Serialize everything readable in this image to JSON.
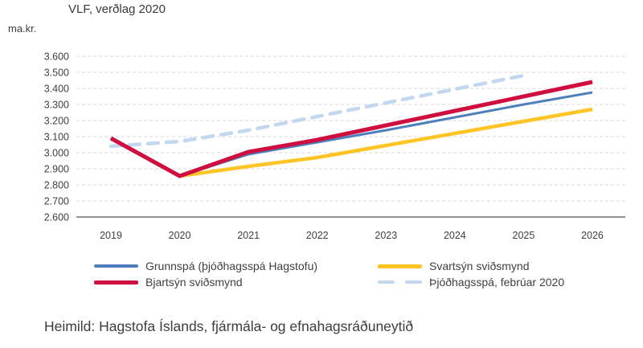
{
  "title": "VLF, verðlag 2020",
  "unit_label": "ma.kr.",
  "source": "Heimild: Hagstofa Íslands, fjármála- og efnahagsráðuneytið",
  "colors": {
    "grunnspa_blue": "#4E7FBD",
    "svartsyn_yellow": "#FFC425",
    "bjartsyn_red": "#CE0F3F",
    "thjodhagsspa_lightblue": "#C3D7EE",
    "gridline": "#D9D9D9",
    "axis": "#4D4D4D",
    "text": "#3F3F3F"
  },
  "chart_data": {
    "type": "line",
    "title": "VLF, verðlag 2020",
    "ylabel": "ma.kr.",
    "xlabel": "",
    "ylim": [
      2.6,
      3.6
    ],
    "grid": "horizontal-dashed",
    "legend_position": "bottom",
    "x": [
      2019,
      2020,
      2021,
      2022,
      2023,
      2024,
      2025,
      2026
    ],
    "y_ticks": [
      {
        "label": "3.600",
        "value": 3.6
      },
      {
        "label": "3.500",
        "value": 3.5
      },
      {
        "label": "3.400",
        "value": 3.4
      },
      {
        "label": "3.300",
        "value": 3.3
      },
      {
        "label": "3.200",
        "value": 3.2
      },
      {
        "label": "3.100",
        "value": 3.1
      },
      {
        "label": "3.000",
        "value": 3.0
      },
      {
        "label": "2.900",
        "value": 2.9
      },
      {
        "label": "2.800",
        "value": 2.8
      },
      {
        "label": "2.700",
        "value": 2.7
      },
      {
        "label": "2.600",
        "value": 2.6
      }
    ],
    "series": [
      {
        "key": "grunnspa",
        "name": "Grunnspá (þjóðhagsspá Hagstofu)",
        "color": "#4E7FBD",
        "style": "solid",
        "stroke_width": 3,
        "x": [
          2019,
          2020,
          2021,
          2022,
          2023,
          2024,
          2025,
          2026
        ],
        "values": [
          3.09,
          2.855,
          2.99,
          3.065,
          3.14,
          3.22,
          3.3,
          3.375
        ]
      },
      {
        "key": "svartsyn",
        "name": "Svartsýn sviðsmynd",
        "color": "#FFC425",
        "style": "solid",
        "stroke_width": 4.5,
        "x": [
          2019,
          2020,
          2021,
          2022,
          2023,
          2024,
          2025,
          2026
        ],
        "values": [
          3.09,
          2.855,
          2.915,
          2.97,
          3.045,
          3.12,
          3.195,
          3.27
        ]
      },
      {
        "key": "bjartsyn",
        "name": "Bjartsýn sviðsmynd",
        "color": "#CE0F3F",
        "style": "solid",
        "stroke_width": 5,
        "x": [
          2019,
          2020,
          2021,
          2022,
          2023,
          2024,
          2025,
          2026
        ],
        "values": [
          3.09,
          2.855,
          3.005,
          3.08,
          3.17,
          3.26,
          3.35,
          3.44
        ]
      },
      {
        "key": "thjodhagsspa",
        "name": "Þjóðhagsspá, febrúar 2020",
        "color": "#C3D7EE",
        "style": "dashed",
        "stroke_width": 4.5,
        "x": [
          2019,
          2020,
          2021,
          2022,
          2023,
          2024,
          2025
        ],
        "values": [
          3.04,
          3.07,
          3.14,
          3.225,
          3.31,
          3.395,
          3.48
        ]
      }
    ]
  },
  "legend": {
    "items": [
      {
        "series_index": 0,
        "label": "Grunnspá (þjóðhagsspá Hagstofu)"
      },
      {
        "series_index": 1,
        "label": "Svartsýn sviðsmynd"
      },
      {
        "series_index": 2,
        "label": "Bjartsýn sviðsmynd"
      },
      {
        "series_index": 3,
        "label": "Þjóðhagsspá, febrúar 2020"
      }
    ]
  }
}
